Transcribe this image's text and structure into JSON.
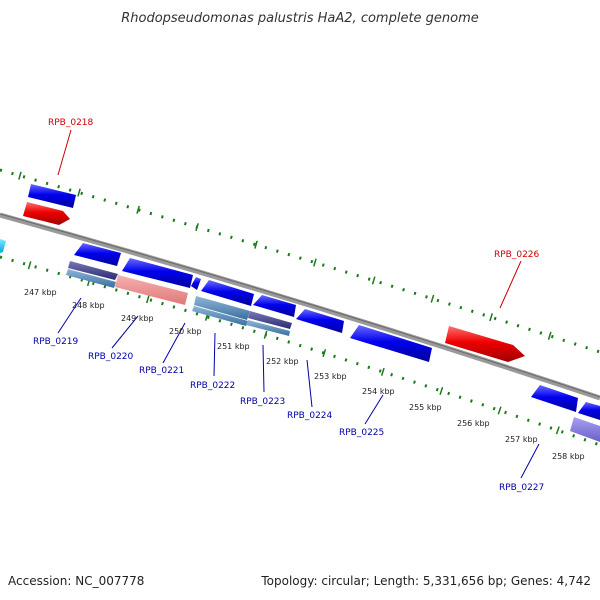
{
  "title": "Rhodopseudomonas palustris HaA2, complete genome",
  "footer": {
    "accession": "Accession: NC_007778",
    "summary": "Topology: circular; Length: 5,331,656 bp; Genes: 4,742"
  },
  "ticks": [
    "247 kbp",
    "248 kbp",
    "249 kbp",
    "250 kbp",
    "251 kbp",
    "252 kbp",
    "253 kbp",
    "254 kbp",
    "255 kbp",
    "256 kbp",
    "257 kbp",
    "258 kbp"
  ],
  "gene_labels": {
    "forward": [
      "RPB_0218",
      "RPB_0226"
    ],
    "reverse": [
      "RPB_0219",
      "RPB_0220",
      "RPB_0221",
      "RPB_0222",
      "RPB_0223",
      "RPB_0224",
      "RPB_0225",
      "RPB_0227"
    ]
  },
  "colors": {
    "forward_label": "#cc0000",
    "reverse_label": "#0000aa",
    "backbone": "#808080",
    "cds_blue": "#0000ee",
    "cds_red": "#ee0000",
    "gc_dots": "#1a7a1a"
  }
}
